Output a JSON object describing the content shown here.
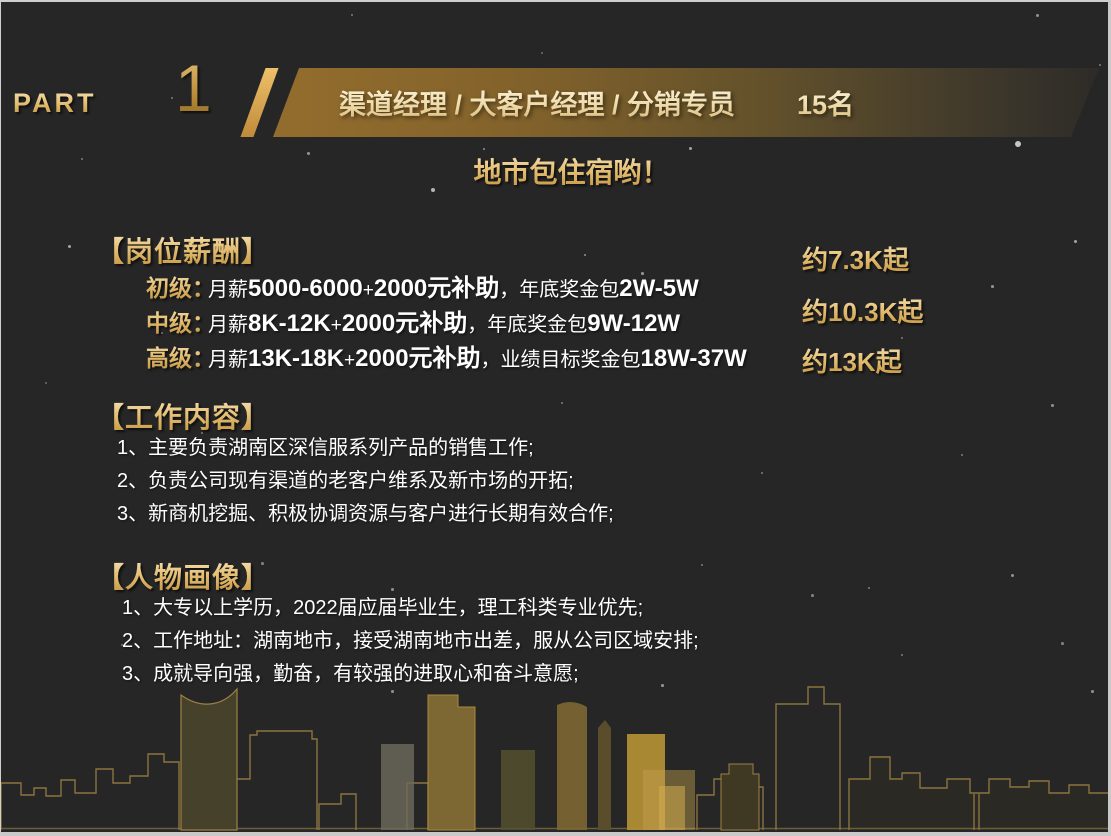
{
  "part": {
    "label": "PART",
    "number": "1"
  },
  "banner": {
    "titles": "渠道经理 /  大客户经理 / 分销专员",
    "headcount": "15名"
  },
  "subtitle": "地市包住宿哟！",
  "salary": {
    "heading": "【岗位薪酬】",
    "rows": [
      {
        "label": "初级：",
        "prefix": "月薪",
        "range": "5000-6000",
        "plus": "+",
        "subsidy": "2000元补助",
        "mid": "，年底奖金包",
        "bonus": "2W-5W",
        "approx": "约7.3K起"
      },
      {
        "label": "中级：",
        "prefix": "月薪",
        "range": "8K-12K",
        "plus": "+",
        "subsidy": "2000元补助",
        "mid": "，年底奖金包",
        "bonus": "9W-12W",
        "approx": "约10.3K起"
      },
      {
        "label": "高级：",
        "prefix": "月薪",
        "range": "13K-18K",
        "plus": "+",
        "subsidy": "2000元补助",
        "mid": "，业绩目标奖金包",
        "bonus": "18W-37W",
        "approx": "约13K起"
      }
    ]
  },
  "work": {
    "heading": "【工作内容】",
    "items": [
      "1、主要负责湖南区深信服系列产品的销售工作;",
      "2、负责公司现有渠道的老客户维系及新市场的开拓;",
      "3、新商机挖掘、积极协调资源与客户进行长期有效合作;"
    ]
  },
  "profile": {
    "heading": "【人物画像】",
    "items": [
      "1、大专以上学历，2022届应届毕业生，理工科类专业优先;",
      "2、工作地址：湖南地市，接受湖南地市出差，服从公司区域安排;",
      "3、成就导向强，勤奋，有较强的进取心和奋斗意愿;"
    ]
  },
  "colors": {
    "background": "#262626",
    "banner_gold": "#936d2d",
    "accent_gold": "#d4a24a",
    "text_white": "#ffffff",
    "frame": "#c9c9c9"
  }
}
